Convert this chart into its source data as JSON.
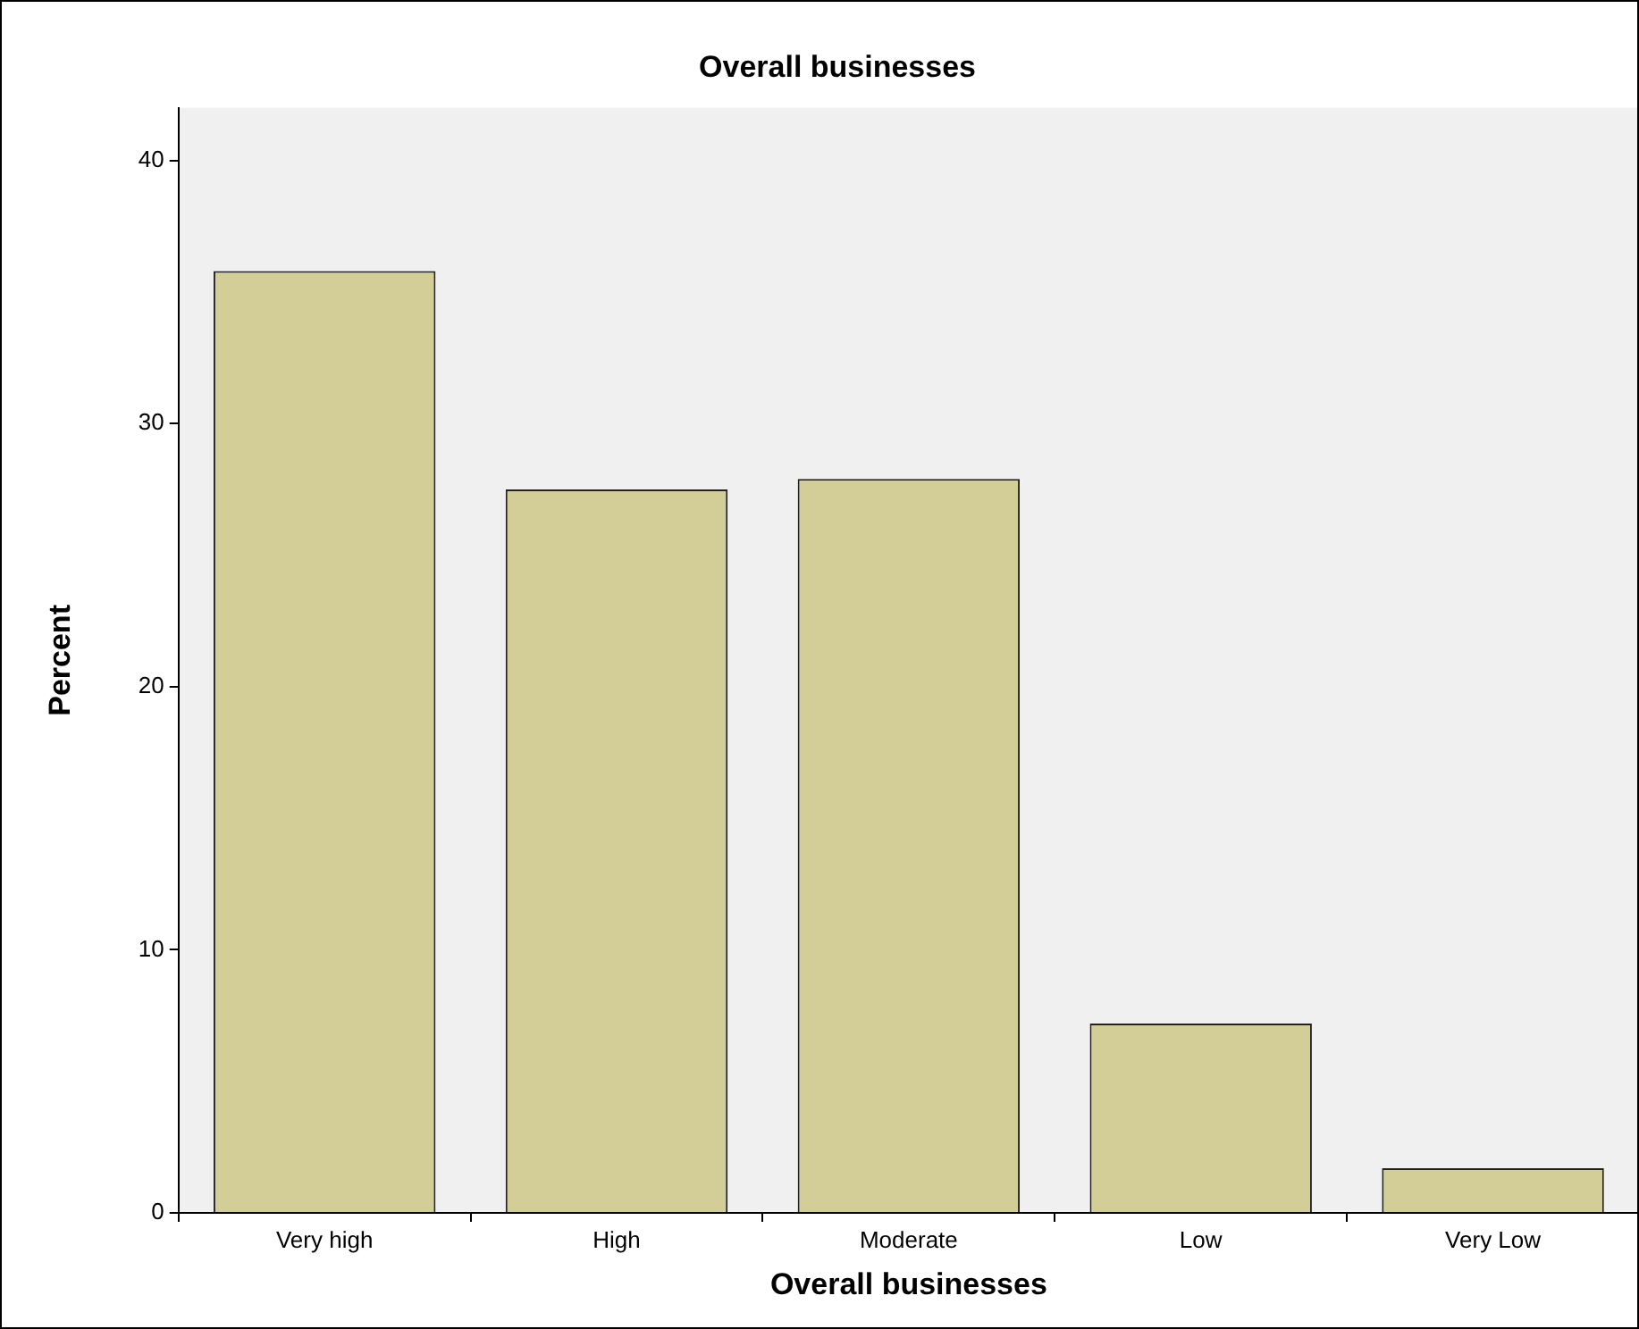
{
  "chart_data": {
    "type": "bar",
    "title": "Overall businesses",
    "xlabel": "Overall businesses",
    "ylabel": "Percent",
    "categories": [
      "Very high",
      "High",
      "Moderate",
      "Low",
      "Very Low"
    ],
    "values": [
      35.8,
      27.5,
      27.9,
      7.2,
      1.7
    ],
    "color": "#d3ce97",
    "ylim": [
      0,
      42
    ],
    "yticks": [
      0,
      10,
      20,
      30,
      40
    ],
    "grid": false,
    "legend": false
  }
}
